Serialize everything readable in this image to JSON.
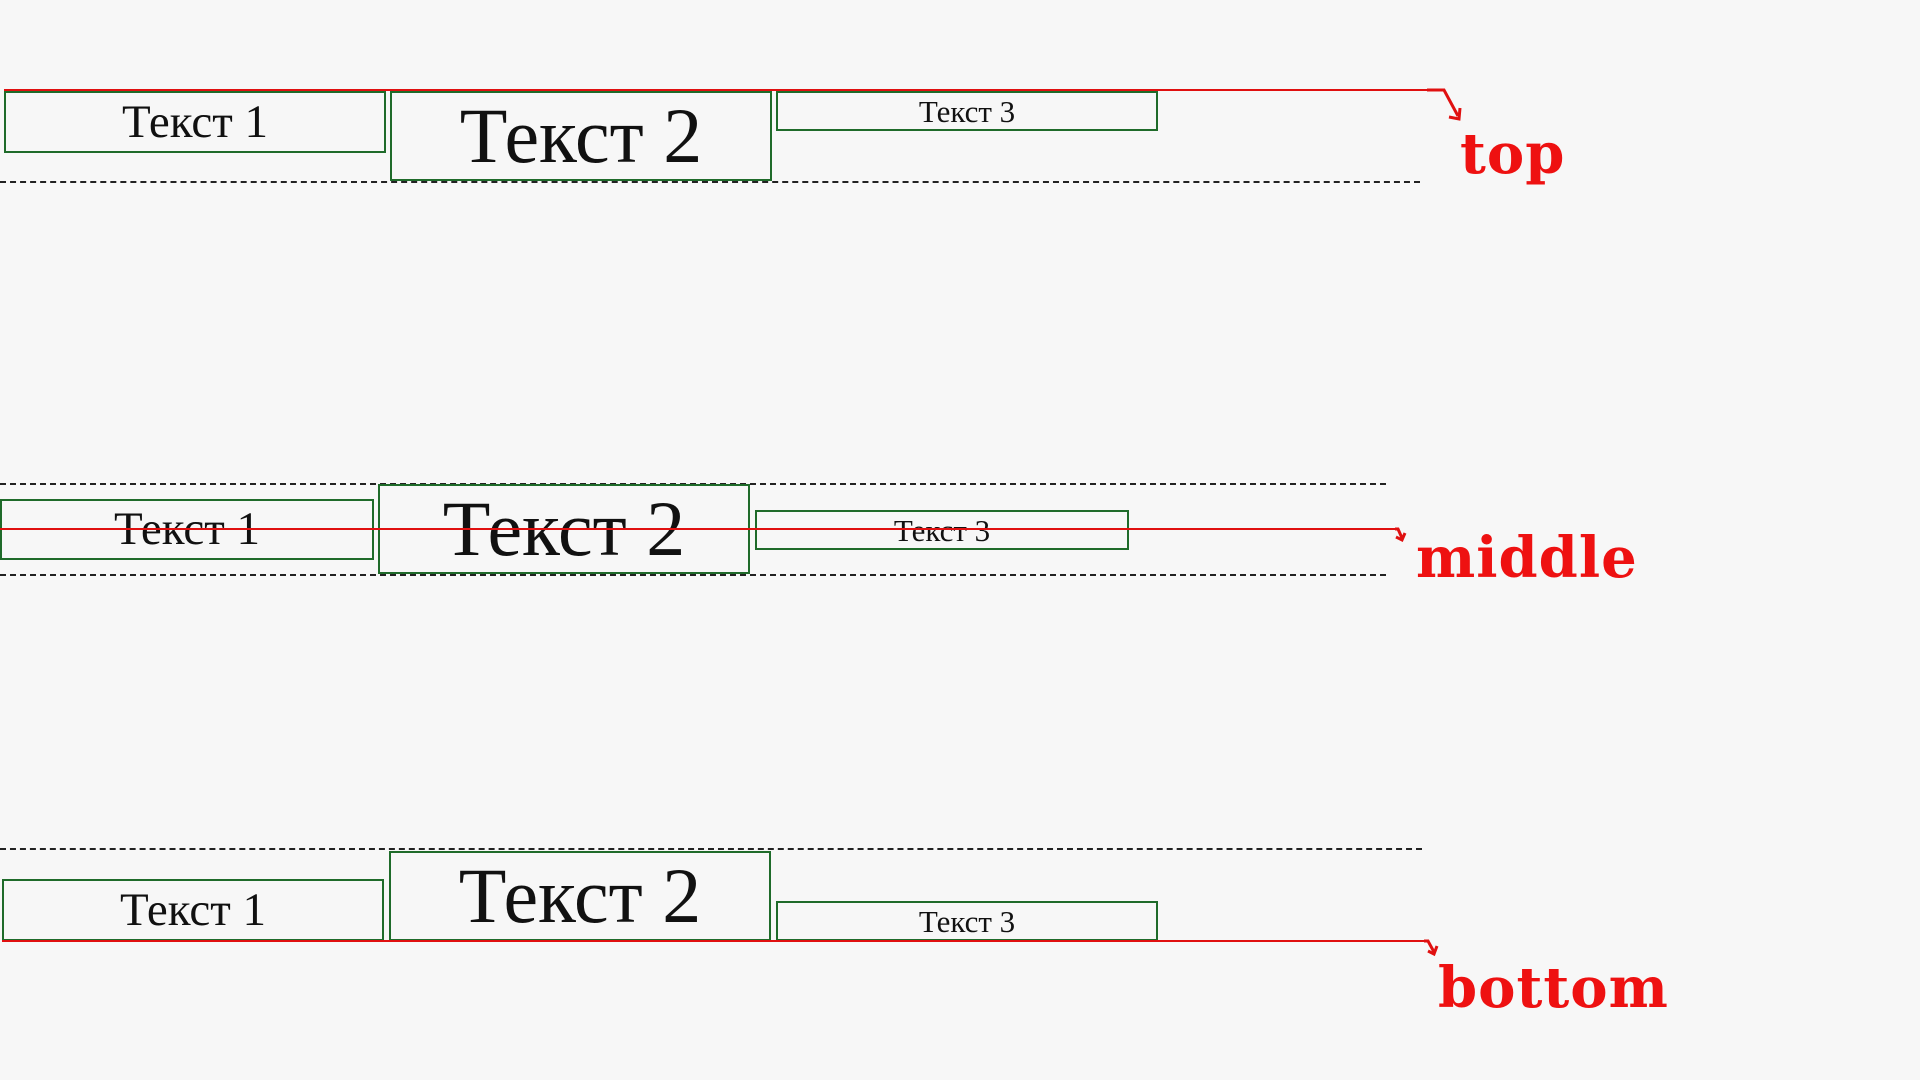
{
  "colors": {
    "background": "#f7f7f7",
    "box_border": "#1f6b2a",
    "guide_red": "#e01010",
    "label_red": "#ee1111"
  },
  "groups": [
    {
      "id": "top",
      "label": "top",
      "boxes": [
        {
          "text": "Текст 1"
        },
        {
          "text": "Текст 2"
        },
        {
          "text": "Текст 3"
        }
      ]
    },
    {
      "id": "middle",
      "label": "middle",
      "boxes": [
        {
          "text": "Текст 1"
        },
        {
          "text": "Текст 2"
        },
        {
          "text": "Текст 3"
        }
      ]
    },
    {
      "id": "bottom",
      "label": "bottom",
      "boxes": [
        {
          "text": "Текст 1"
        },
        {
          "text": "Текст 2"
        },
        {
          "text": "Текст 3"
        }
      ]
    }
  ]
}
